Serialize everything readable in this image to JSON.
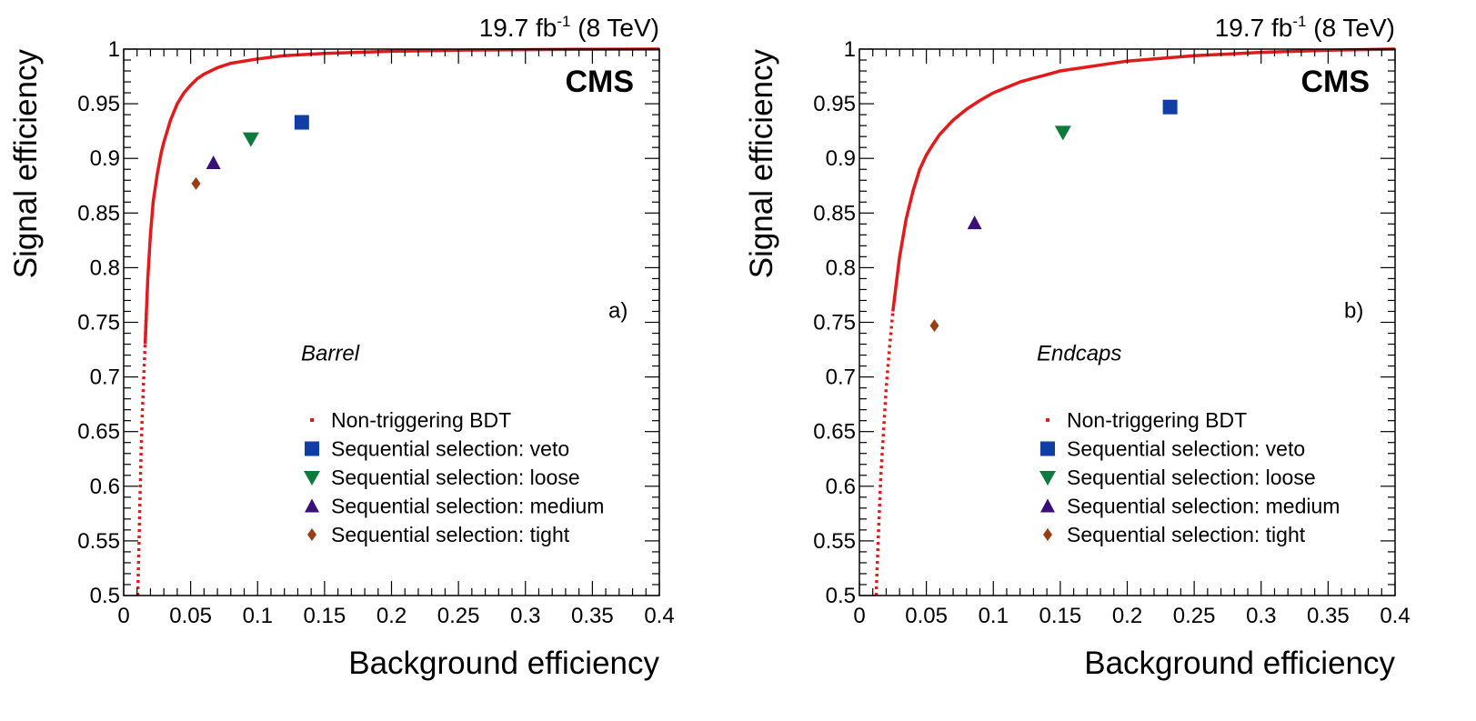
{
  "chart_data": [
    {
      "type": "scatter",
      "experiment_label": "CMS",
      "lumi_text": "19.7 fb",
      "lumi_exponent": "-1",
      "energy_text": " (8 TeV)",
      "panel_label": "a)",
      "region_label": "Barrel",
      "xlabel": "Background efficiency",
      "ylabel": "Signal efficiency",
      "xlim": [
        0,
        0.4
      ],
      "ylim": [
        0.5,
        1.0
      ],
      "x_tick_labels": [
        "0",
        "0.05",
        "0.1",
        "0.15",
        "0.2",
        "0.25",
        "0.3",
        "0.35",
        "0.4"
      ],
      "y_tick_labels": [
        "0.5",
        "0.55",
        "0.6",
        "0.65",
        "0.7",
        "0.75",
        "0.8",
        "0.85",
        "0.9",
        "0.95",
        "1"
      ],
      "legend_position": "bottom-center",
      "series": [
        {
          "name": "Non-triggering BDT",
          "marker": "curve",
          "color": "#e31a1c",
          "x": [
            0.0105,
            0.0115,
            0.012,
            0.013,
            0.014,
            0.015,
            0.016,
            0.017,
            0.018,
            0.02,
            0.022,
            0.025,
            0.028,
            0.03,
            0.035,
            0.04,
            0.045,
            0.05,
            0.055,
            0.06,
            0.07,
            0.08,
            0.1,
            0.12,
            0.15,
            0.2,
            0.25,
            0.3,
            0.35,
            0.4
          ],
          "y": [
            0.5,
            0.55,
            0.58,
            0.63,
            0.67,
            0.7,
            0.73,
            0.76,
            0.79,
            0.83,
            0.86,
            0.885,
            0.905,
            0.915,
            0.935,
            0.95,
            0.96,
            0.967,
            0.973,
            0.977,
            0.983,
            0.987,
            0.991,
            0.994,
            0.996,
            0.998,
            0.999,
            0.9995,
            0.9998,
            1.0
          ]
        },
        {
          "name": "Sequential selection: veto",
          "marker": "square",
          "color": "#0f3ea6",
          "x": [
            0.133
          ],
          "y": [
            0.933
          ]
        },
        {
          "name": "Sequential selection: loose",
          "marker": "triangle-down",
          "color": "#0e7a3e",
          "x": [
            0.095
          ],
          "y": [
            0.918
          ]
        },
        {
          "name": "Sequential selection: medium",
          "marker": "triangle-up",
          "color": "#3b0f7a",
          "x": [
            0.067
          ],
          "y": [
            0.896
          ]
        },
        {
          "name": "Sequential selection: tight",
          "marker": "diamond",
          "color": "#9a3d12",
          "x": [
            0.054
          ],
          "y": [
            0.877
          ]
        }
      ]
    },
    {
      "type": "scatter",
      "experiment_label": "CMS",
      "lumi_text": "19.7 fb",
      "lumi_exponent": "-1",
      "energy_text": " (8 TeV)",
      "panel_label": "b)",
      "region_label": "Endcaps",
      "xlabel": "Background efficiency",
      "ylabel": "Signal efficiency",
      "xlim": [
        0,
        0.4
      ],
      "ylim": [
        0.5,
        1.0
      ],
      "x_tick_labels": [
        "0",
        "0.05",
        "0.1",
        "0.15",
        "0.2",
        "0.25",
        "0.3",
        "0.35",
        "0.4"
      ],
      "y_tick_labels": [
        "0.5",
        "0.55",
        "0.6",
        "0.65",
        "0.7",
        "0.75",
        "0.8",
        "0.85",
        "0.9",
        "0.95",
        "1"
      ],
      "legend_position": "bottom-center",
      "series": [
        {
          "name": "Non-triggering BDT",
          "marker": "curve",
          "color": "#e31a1c",
          "x": [
            0.0125,
            0.014,
            0.015,
            0.016,
            0.018,
            0.02,
            0.022,
            0.025,
            0.028,
            0.03,
            0.035,
            0.04,
            0.045,
            0.05,
            0.055,
            0.06,
            0.07,
            0.08,
            0.09,
            0.1,
            0.12,
            0.15,
            0.2,
            0.25,
            0.3,
            0.35,
            0.4
          ],
          "y": [
            0.5,
            0.55,
            0.58,
            0.61,
            0.65,
            0.69,
            0.72,
            0.76,
            0.79,
            0.81,
            0.845,
            0.87,
            0.89,
            0.903,
            0.913,
            0.922,
            0.935,
            0.945,
            0.953,
            0.96,
            0.97,
            0.98,
            0.989,
            0.994,
            0.997,
            0.999,
            1.0
          ]
        },
        {
          "name": "Sequential selection: veto",
          "marker": "square",
          "color": "#0f3ea6",
          "x": [
            0.232
          ],
          "y": [
            0.947
          ]
        },
        {
          "name": "Sequential selection: loose",
          "marker": "triangle-down",
          "color": "#0e7a3e",
          "x": [
            0.152
          ],
          "y": [
            0.924
          ]
        },
        {
          "name": "Sequential selection: medium",
          "marker": "triangle-up",
          "color": "#3b0f7a",
          "x": [
            0.086
          ],
          "y": [
            0.841
          ]
        },
        {
          "name": "Sequential selection: tight",
          "marker": "diamond",
          "color": "#9a3d12",
          "x": [
            0.056
          ],
          "y": [
            0.747
          ]
        }
      ]
    }
  ]
}
